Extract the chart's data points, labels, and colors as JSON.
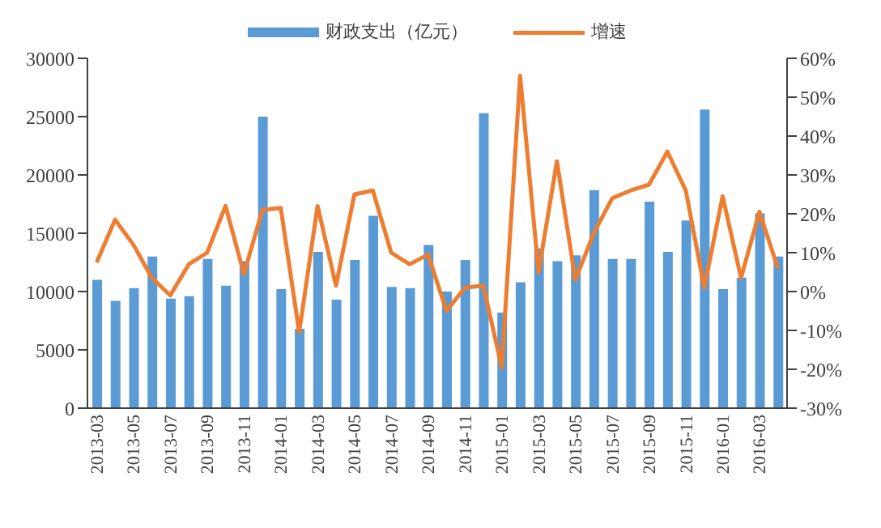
{
  "chart_data": {
    "type": "bar",
    "categories": [
      "2013-03",
      null,
      "2013-05",
      null,
      "2013-07",
      null,
      "2013-09",
      null,
      "2013-11",
      null,
      "2014-01",
      null,
      "2014-03",
      null,
      "2014-05",
      null,
      "2014-07",
      null,
      "2014-09",
      null,
      "2014-11",
      null,
      "2015-01",
      null,
      "2015-03",
      null,
      "2015-05",
      null,
      "2015-07",
      null,
      "2015-09",
      null,
      "2015-11",
      null,
      "2016-01",
      null,
      "2016-03",
      null
    ],
    "series": [
      {
        "name": "财政支出（亿元）",
        "color": "#5b9bd5",
        "values": [
          11000,
          9200,
          10300,
          13000,
          9400,
          9600,
          12800,
          10500,
          12600,
          25000,
          10200,
          6800,
          13400,
          9300,
          12700,
          16500,
          10400,
          10300,
          14000,
          10000,
          12700,
          25300,
          8200,
          10800,
          13700,
          12600,
          13100,
          18700,
          12800,
          12800,
          17700,
          13400,
          16100,
          25600,
          10200,
          11200,
          16700,
          13000
        ]
      },
      {
        "name": "增速",
        "type": "line",
        "axis": "y2",
        "color": "#ed7d31",
        "values": [
          7.5,
          18.5,
          12,
          3.5,
          -1,
          7,
          10,
          22,
          4.5,
          21,
          21.5,
          -10.5,
          22,
          1.5,
          25,
          26,
          10,
          7,
          9.5,
          -5,
          1,
          1.5,
          -19.5,
          55.5,
          5,
          33.5,
          3,
          15,
          24,
          26,
          27.5,
          36,
          26,
          1,
          24.5,
          3.5,
          20.5,
          6
        ]
      }
    ],
    "ylim": [
      0,
      30000
    ],
    "yticks": [
      0,
      5000,
      10000,
      15000,
      20000,
      25000,
      30000
    ],
    "y2lim": [
      -30,
      60
    ],
    "y2ticks": [
      {
        "value": -30,
        "label": "-30%"
      },
      {
        "value": -20,
        "label": "-20%"
      },
      {
        "value": -10,
        "label": "-10%"
      },
      {
        "value": 0,
        "label": "0%"
      },
      {
        "value": 10,
        "label": "10%"
      },
      {
        "value": 20,
        "label": "20%"
      },
      {
        "value": 30,
        "label": "30%"
      },
      {
        "value": 40,
        "label": "40%"
      },
      {
        "value": 50,
        "label": "50%"
      },
      {
        "value": 60,
        "label": "60%"
      }
    ],
    "grid": false,
    "legend": "top",
    "marker": "none"
  }
}
